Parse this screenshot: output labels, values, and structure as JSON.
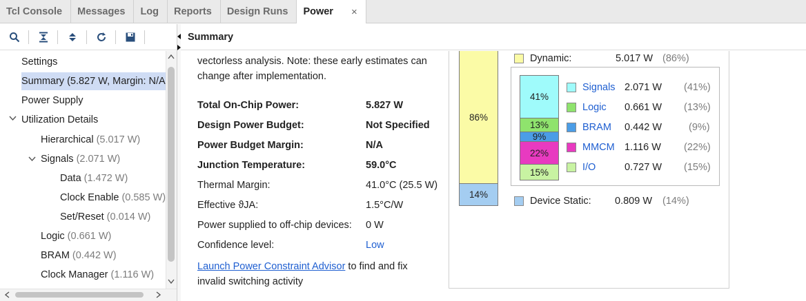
{
  "tabs": [
    {
      "label": "Tcl Console"
    },
    {
      "label": "Messages"
    },
    {
      "label": "Log"
    },
    {
      "label": "Reports"
    },
    {
      "label": "Design Runs"
    },
    {
      "label": "Power",
      "close": "×"
    }
  ],
  "toolbar": {
    "icons": [
      "search-icon",
      "collapse-all-icon",
      "expand-all-icon",
      "refresh-icon",
      "save-icon"
    ]
  },
  "tree": {
    "items": [
      {
        "label": "Settings"
      },
      {
        "label": "Summary (5.827 W, Margin: N/A)"
      },
      {
        "label": "Power Supply"
      },
      {
        "label": "Utilization Details"
      },
      {
        "label": "Hierarchical",
        "value": "(5.017 W)"
      },
      {
        "label": "Signals",
        "value": "(2.071 W)"
      },
      {
        "label": "Data",
        "value": "(1.472 W)"
      },
      {
        "label": "Clock Enable",
        "value": "(0.585 W)"
      },
      {
        "label": "Set/Reset",
        "value": "(0.014 W)"
      },
      {
        "label": "Logic",
        "value": "(0.661 W)"
      },
      {
        "label": "BRAM",
        "value": "(0.442 W)"
      },
      {
        "label": "Clock Manager",
        "value": "(1.116 W)"
      }
    ]
  },
  "summary": {
    "header": "Summary",
    "intro": "vectorless analysis. Note: these early estimates can change after implementation.",
    "rows": [
      {
        "label": "Total On-Chip Power:",
        "value": "5.827 W"
      },
      {
        "label": "Design Power Budget:",
        "value": "Not Specified"
      },
      {
        "label": "Power Budget Margin:",
        "value": "N/A"
      },
      {
        "label": "Junction Temperature:",
        "value": "59.0°C"
      },
      {
        "label": "Thermal Margin:",
        "value": "41.0°C (25.5 W)"
      },
      {
        "label": "Effective ϑJA:",
        "value": "1.5°C/W"
      },
      {
        "label": "Power supplied to off-chip devices:",
        "value": "0 W"
      },
      {
        "label": "Confidence level:",
        "value": "Low"
      }
    ],
    "advisor_link": "Launch Power Constraint Advisor",
    "advisor_text": " to find and fix invalid switching activity"
  },
  "power_chart": {
    "dynamic": {
      "label": "Dynamic:",
      "watts": "5.017 W",
      "pct": "(86%)",
      "bar_pct": "86%",
      "fraction": 0.86,
      "color": "#fbfba6"
    },
    "static": {
      "label": "Device Static:",
      "watts": "0.809 W",
      "pct": "(14%)",
      "bar_pct": "14%",
      "fraction": 0.14,
      "color": "#a4cdf1"
    },
    "breakdown": [
      {
        "name": "Signals",
        "watts": "2.071 W",
        "pct": "(41%)",
        "bar_pct": "41%",
        "fraction": 0.41,
        "color": "#9ffbfb"
      },
      {
        "name": "Logic",
        "watts": "0.661 W",
        "pct": "(13%)",
        "bar_pct": "13%",
        "fraction": 0.13,
        "color": "#8fe36d"
      },
      {
        "name": "BRAM",
        "watts": "0.442 W",
        "pct": "(9%)",
        "bar_pct": "9%",
        "fraction": 0.09,
        "color": "#4b9de6"
      },
      {
        "name": "MMCM",
        "watts": "1.116 W",
        "pct": "(22%)",
        "bar_pct": "22%",
        "fraction": 0.22,
        "color": "#e83ac0"
      },
      {
        "name": "I/O",
        "watts": "0.727 W",
        "pct": "(15%)",
        "bar_pct": "15%",
        "fraction": 0.15,
        "color": "#c8f3a2"
      }
    ]
  }
}
